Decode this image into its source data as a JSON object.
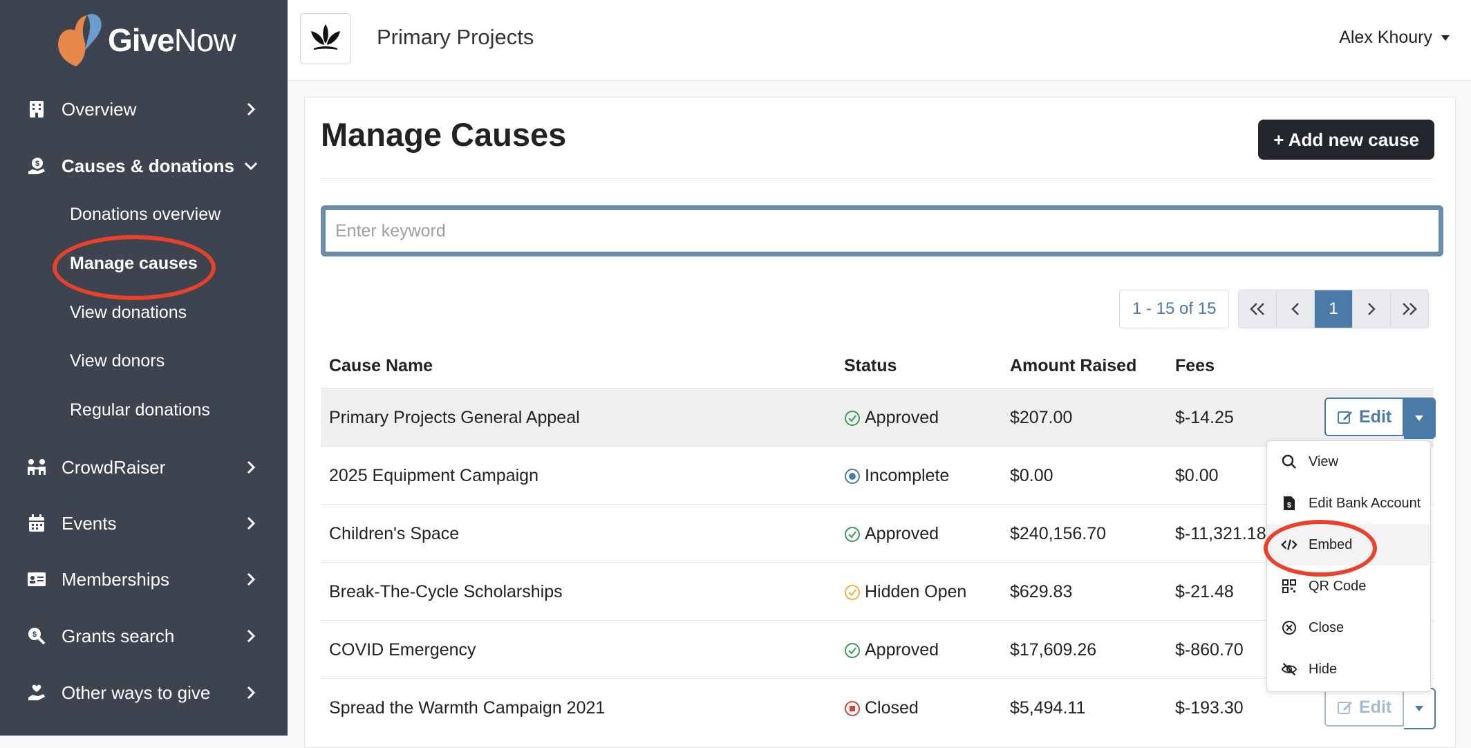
{
  "brand": {
    "name_bold": "Give",
    "name_light": "Now",
    "icon": "givenow-heart-logo"
  },
  "sidebar": {
    "items": [
      {
        "label": "Overview",
        "icon": "building-icon",
        "chevron": "right"
      },
      {
        "label": "Causes & donations",
        "icon": "hand-coin-icon",
        "chevron": "down"
      },
      {
        "label": "CrowdRaiser",
        "icon": "people-icon",
        "chevron": "right"
      },
      {
        "label": "Events",
        "icon": "calendar-icon",
        "chevron": "right"
      },
      {
        "label": "Memberships",
        "icon": "id-card-icon",
        "chevron": "right"
      },
      {
        "label": "Grants search",
        "icon": "search-dollar-icon",
        "chevron": "right"
      },
      {
        "label": "Other ways to give",
        "icon": "hand-heart-icon",
        "chevron": "right"
      }
    ],
    "sub_items": [
      "Donations overview",
      "Manage causes",
      "View donations",
      "View donors",
      "Regular donations"
    ]
  },
  "header": {
    "org_name": "Primary Projects",
    "user_name": "Alex Khoury"
  },
  "main": {
    "title": "Manage Causes",
    "add_button": "+ Add new cause",
    "search_placeholder": "Enter keyword",
    "pagination": {
      "range": "1 - 15 of 15",
      "current_page": "1"
    },
    "columns": [
      "Cause Name",
      "Status",
      "Amount Raised",
      "Fees"
    ],
    "rows": [
      {
        "name": "Primary Projects General Appeal",
        "status": "Approved",
        "status_icon": "check-circle-icon",
        "status_color": "#3a9a5b",
        "amount": "$207.00",
        "fees": "$-14.25"
      },
      {
        "name": "2025 Equipment Campaign",
        "status": "Incomplete",
        "status_icon": "dot-circle-icon",
        "status_color": "#4a7aa7",
        "amount": "$0.00",
        "fees": "$0.00"
      },
      {
        "name": "Children's Space",
        "status": "Approved",
        "status_icon": "check-circle-icon",
        "status_color": "#3a9a5b",
        "amount": "$240,156.70",
        "fees": "$-11,321.18"
      },
      {
        "name": "Break-The-Cycle Scholarships",
        "status": "Hidden Open",
        "status_icon": "check-circle-icon",
        "status_color": "#e8b53a",
        "amount": "$629.83",
        "fees": "$-21.48"
      },
      {
        "name": "COVID Emergency",
        "status": "Approved",
        "status_icon": "check-circle-icon",
        "status_color": "#3a9a5b",
        "amount": "$17,609.26",
        "fees": "$-860.70"
      },
      {
        "name": "Spread the Warmth Campaign 2021",
        "status": "Closed",
        "status_icon": "stop-circle-icon",
        "status_color": "#d8403a",
        "amount": "$5,494.11",
        "fees": "$-193.30"
      }
    ],
    "edit_label": "Edit"
  },
  "dropdown": {
    "items": [
      {
        "label": "View",
        "icon": "search-icon"
      },
      {
        "label": "Edit Bank Account",
        "icon": "file-dollar-icon"
      },
      {
        "label": "Embed",
        "icon": "code-icon"
      },
      {
        "label": "QR Code",
        "icon": "qr-code-icon"
      },
      {
        "label": "Close",
        "icon": "x-circle-icon"
      },
      {
        "label": "Hide",
        "icon": "eye-slash-icon"
      }
    ]
  },
  "colors": {
    "sidebar_bg": "#3d434f",
    "accent": "#4a7aa7",
    "annotation": "#e8432a",
    "primary_dark": "#23262d"
  }
}
